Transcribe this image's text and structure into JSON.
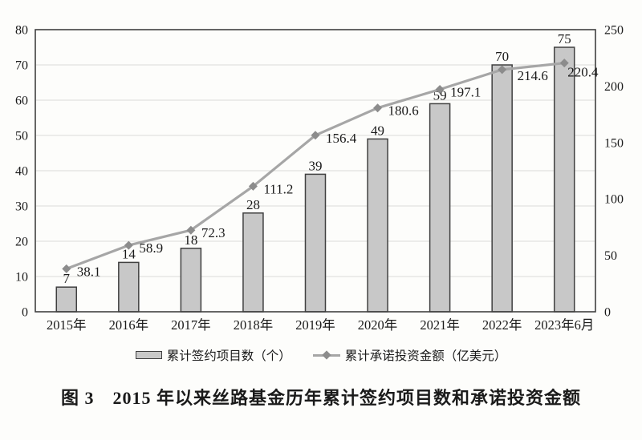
{
  "figure": {
    "title": "图 3　2015 年以来丝路基金历年累计签约项目数和承诺投资金额"
  },
  "legend": {
    "bar_label": "累计签约项目数（个）",
    "line_label": "累计承诺投资金额（亿美元）"
  },
  "colors": {
    "background": "#fdfdfb",
    "bar_fill": "#c8c8c8",
    "bar_border": "#404040",
    "line": "#a6a6a6",
    "marker": "#8c8c8c",
    "grid": "#dcdcda",
    "axis_border": "#404040",
    "text": "#1a1a1a"
  },
  "chart_data": {
    "type": "combo",
    "title": "图 3　2015 年以来丝路基金历年累计签约项目数和承诺投资金额",
    "categories": [
      "2015年",
      "2016年",
      "2017年",
      "2018年",
      "2019年",
      "2020年",
      "2021年",
      "2022年",
      "2023年6月"
    ],
    "series": [
      {
        "name": "累计签约项目数（个）",
        "type": "bar",
        "axis": "left",
        "values": [
          7,
          14,
          18,
          28,
          39,
          49,
          59,
          70,
          75
        ]
      },
      {
        "name": "累计承诺投资金额（亿美元）",
        "type": "line",
        "axis": "right",
        "values": [
          38.1,
          58.9,
          72.3,
          111.2,
          156.4,
          180.6,
          197.1,
          214.6,
          220.4
        ]
      }
    ],
    "left_axis": {
      "min": 0,
      "max": 80,
      "step": 10,
      "ticks": [
        0,
        10,
        20,
        30,
        40,
        50,
        60,
        70,
        80
      ]
    },
    "right_axis": {
      "min": 0,
      "max": 250,
      "step": 50,
      "ticks": [
        0,
        50,
        100,
        150,
        200,
        250
      ]
    },
    "grid": true,
    "legend_position": "bottom",
    "value_labels": true
  }
}
